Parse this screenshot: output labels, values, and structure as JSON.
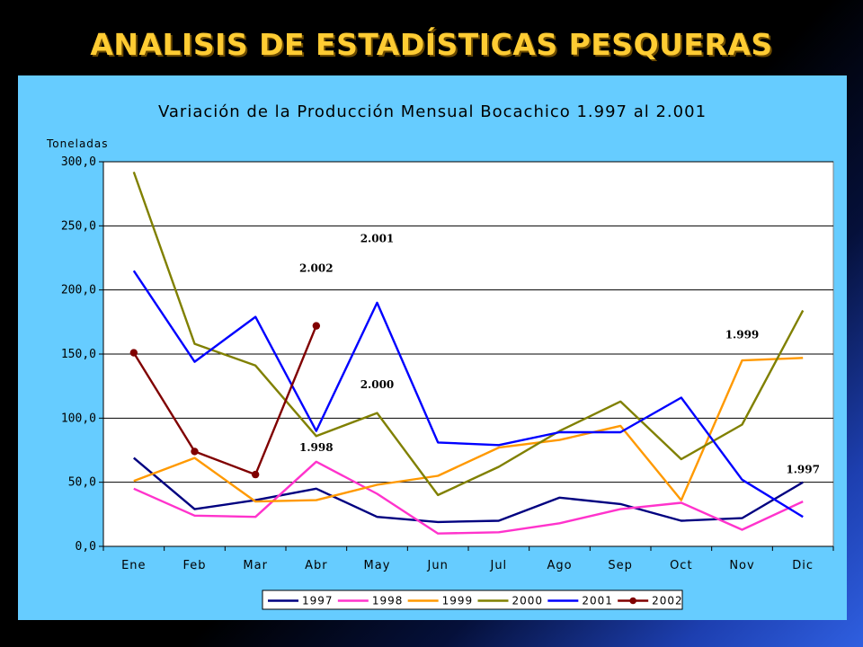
{
  "slide": {
    "title": "ANALISIS DE ESTADÍSTICAS PESQUERAS"
  },
  "colors": {
    "panel_bg": "#66ccff",
    "plot_bg": "#ffffff",
    "title_color": "#ffcc33"
  },
  "chart_data": {
    "type": "line",
    "title": "Variación de la Producción Mensual Bocachico 1.997 al 2.001",
    "ylabel": "Toneladas",
    "xlabel": "",
    "ylim": [
      0,
      300
    ],
    "yticks": [
      0,
      50,
      100,
      150,
      200,
      250,
      300
    ],
    "ytick_labels": [
      "0,0",
      "50,0",
      "100,0",
      "150,0",
      "200,0",
      "250,0",
      "300,0"
    ],
    "grid": "horizontal",
    "legend_position": "bottom",
    "categories": [
      "Ene",
      "Feb",
      "Mar",
      "Abr",
      "May",
      "Jun",
      "Jul",
      "Ago",
      "Sep",
      "Oct",
      "Nov",
      "Dic"
    ],
    "series": [
      {
        "name": "1997",
        "color": "#000080",
        "marker": "none",
        "values": [
          69,
          29,
          36,
          45,
          23,
          19,
          20,
          38,
          33,
          20,
          22,
          50
        ]
      },
      {
        "name": "1998",
        "color": "#ff33cc",
        "marker": "none",
        "values": [
          45,
          24,
          23,
          66,
          41,
          10,
          11,
          18,
          29,
          34,
          13,
          35
        ]
      },
      {
        "name": "1999",
        "color": "#ff9900",
        "marker": "none",
        "values": [
          51,
          69,
          35,
          36,
          48,
          55,
          77,
          83,
          94,
          36,
          145,
          147
        ]
      },
      {
        "name": "2000",
        "color": "#808000",
        "marker": "none",
        "values": [
          292,
          158,
          141,
          86,
          104,
          40,
          62,
          90,
          113,
          68,
          95,
          184
        ]
      },
      {
        "name": "2001",
        "color": "#0000ff",
        "marker": "none",
        "values": [
          215,
          144,
          179,
          90,
          190,
          81,
          79,
          89,
          89,
          116,
          52,
          23
        ]
      },
      {
        "name": "2002",
        "color": "#800000",
        "marker": "circle",
        "values": [
          151,
          74,
          56,
          172,
          null,
          null,
          null,
          null,
          null,
          null,
          null,
          null
        ]
      }
    ],
    "annotations": [
      {
        "text": "2.001",
        "x": "May",
        "y": 240
      },
      {
        "text": "2.002",
        "x": "Abr",
        "y": 217
      },
      {
        "text": "2.000",
        "x": "May",
        "y": 126
      },
      {
        "text": "1.998",
        "x": "Abr",
        "y": 77
      },
      {
        "text": "1.999",
        "x": "Nov",
        "y": 165
      },
      {
        "text": "1.997",
        "x": "Dic",
        "y": 60
      }
    ]
  }
}
